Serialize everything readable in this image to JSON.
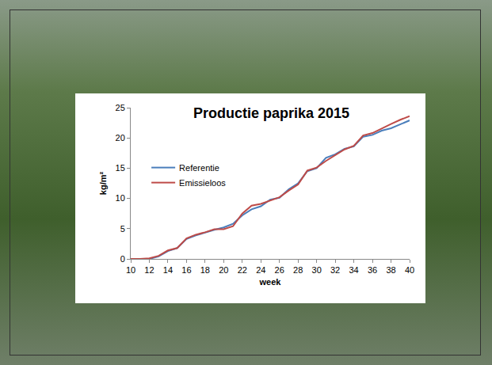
{
  "chart_data": {
    "type": "line",
    "title": "Productie paprika 2015",
    "x_label": "week",
    "y_label": "kg/m²",
    "x": [
      10,
      11,
      12,
      13,
      14,
      15,
      16,
      17,
      18,
      19,
      20,
      21,
      22,
      23,
      24,
      25,
      26,
      27,
      28,
      29,
      30,
      31,
      32,
      33,
      34,
      35,
      36,
      37,
      38,
      39,
      40
    ],
    "series": [
      {
        "name": "Referentie",
        "color": "#4a7ebb",
        "line_style": "solid",
        "values": [
          0,
          0,
          0,
          0.4,
          1.3,
          1.8,
          3.3,
          3.9,
          4.3,
          4.8,
          5.2,
          5.8,
          7.2,
          8.2,
          8.7,
          9.8,
          10.1,
          11.5,
          12.5,
          14.5,
          15.0,
          16.7,
          17.3,
          18.2,
          18.6,
          20.2,
          20.5,
          21.2,
          21.6,
          22.2,
          22.9
        ]
      },
      {
        "name": "Emissieloos",
        "color": "#be4b48",
        "line_style": "solid",
        "values": [
          0,
          0,
          0.1,
          0.5,
          1.4,
          1.8,
          3.4,
          4.0,
          4.4,
          4.9,
          4.9,
          5.4,
          7.5,
          8.8,
          9.1,
          9.7,
          10.2,
          11.3,
          12.3,
          14.6,
          15.1,
          16.2,
          17.1,
          18.1,
          18.7,
          20.4,
          20.8,
          21.6,
          22.3,
          23.0,
          23.6
        ]
      }
    ],
    "xlim": [
      10,
      40
    ],
    "ylim": [
      0,
      25
    ],
    "xticks": [
      10,
      12,
      14,
      16,
      18,
      20,
      22,
      24,
      26,
      28,
      30,
      32,
      34,
      36,
      38,
      40
    ],
    "yticks": [
      0,
      5,
      10,
      15,
      20,
      25
    ],
    "grid": false,
    "legend": "upper left"
  }
}
